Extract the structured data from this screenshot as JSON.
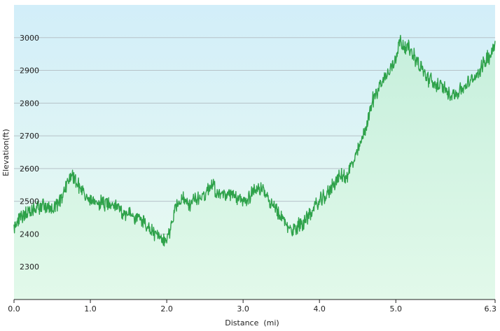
{
  "chart_data": {
    "type": "area",
    "title": "",
    "xlabel": "Distance  (mi)",
    "ylabel": "Elevation(ft)",
    "xlim": [
      0,
      6.3
    ],
    "ylim": [
      2200,
      3100
    ],
    "grid": true,
    "legend": "none",
    "x_ticks": [
      {
        "value": 0.0,
        "label": "0.0"
      },
      {
        "value": 1.0,
        "label": "1.0"
      },
      {
        "value": 2.0,
        "label": "2.0"
      },
      {
        "value": 3.0,
        "label": "3.0"
      },
      {
        "value": 4.0,
        "label": "4.0"
      },
      {
        "value": 5.0,
        "label": "5.0"
      },
      {
        "value": 6.3,
        "label": "6.3"
      }
    ],
    "y_ticks": [
      {
        "value": 2300,
        "label": "2300"
      },
      {
        "value": 2400,
        "label": "2400"
      },
      {
        "value": 2500,
        "label": "2500"
      },
      {
        "value": 2600,
        "label": "2600"
      },
      {
        "value": 2700,
        "label": "2700"
      },
      {
        "value": 2800,
        "label": "2800"
      },
      {
        "value": 2900,
        "label": "2900"
      },
      {
        "value": 3000,
        "label": "3000"
      }
    ],
    "series": [
      {
        "x": [
          0.0,
          0.05,
          0.1,
          0.15,
          0.2,
          0.3,
          0.4,
          0.5,
          0.6,
          0.65,
          0.7,
          0.75,
          0.8,
          0.85,
          0.9,
          0.95,
          1.0,
          1.05,
          1.1,
          1.2,
          1.3,
          1.4,
          1.5,
          1.6,
          1.7,
          1.75,
          1.8,
          1.85,
          1.9,
          1.95,
          2.0,
          2.05,
          2.1,
          2.15,
          2.2,
          2.25,
          2.3,
          2.4,
          2.5,
          2.55,
          2.6,
          2.65,
          2.7,
          2.8,
          2.9,
          3.0,
          3.1,
          3.15,
          3.2,
          3.3,
          3.4,
          3.5,
          3.6,
          3.65,
          3.7,
          3.8,
          3.9,
          4.0,
          4.1,
          4.2,
          4.3,
          4.35,
          4.4,
          4.5,
          4.6,
          4.7,
          4.8,
          4.9,
          5.0,
          5.05,
          5.1,
          5.2,
          5.3,
          5.4,
          5.5,
          5.6,
          5.7,
          5.8,
          5.9,
          6.0,
          6.1,
          6.2,
          6.25,
          6.3
        ],
        "y": [
          2420,
          2440,
          2450,
          2470,
          2460,
          2480,
          2490,
          2470,
          2500,
          2530,
          2560,
          2580,
          2570,
          2550,
          2530,
          2510,
          2500,
          2490,
          2500,
          2490,
          2500,
          2470,
          2460,
          2450,
          2440,
          2420,
          2410,
          2400,
          2390,
          2370,
          2390,
          2420,
          2470,
          2500,
          2510,
          2500,
          2490,
          2510,
          2520,
          2540,
          2560,
          2530,
          2520,
          2520,
          2510,
          2500,
          2520,
          2540,
          2540,
          2520,
          2480,
          2450,
          2420,
          2410,
          2420,
          2440,
          2470,
          2500,
          2520,
          2560,
          2580,
          2570,
          2600,
          2650,
          2720,
          2810,
          2860,
          2890,
          2940,
          2990,
          2980,
          2960,
          2920,
          2880,
          2860,
          2850,
          2830,
          2830,
          2850,
          2870,
          2900,
          2940,
          2950,
          2990
        ]
      }
    ]
  }
}
